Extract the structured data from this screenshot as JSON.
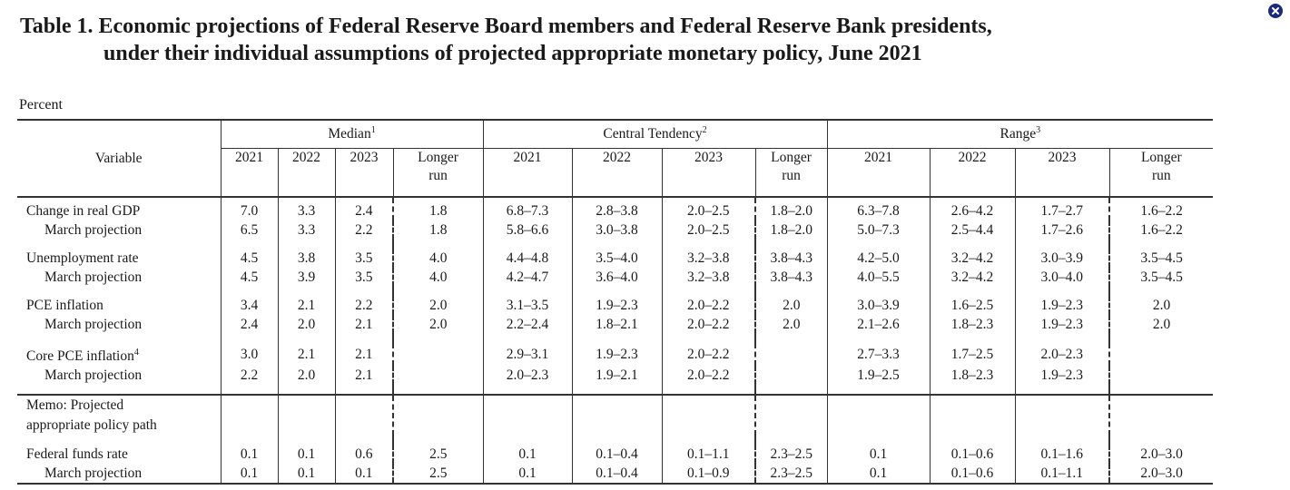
{
  "title": {
    "line1": "Table 1.  Economic projections of Federal Reserve Board members and Federal Reserve Bank presidents,",
    "line2": "under their individual assumptions of projected appropriate monetary policy, June 2021"
  },
  "units": "Percent",
  "headers": {
    "variable": "Variable",
    "median": "Median",
    "median_note": "1",
    "central": "Central Tendency",
    "central_note": "2",
    "range": "Range",
    "range_note": "3",
    "years": [
      "2021",
      "2022",
      "2023"
    ],
    "longer_run_1": "Longer",
    "longer_run_2": "run"
  },
  "rows": {
    "gdp": {
      "label": "Change in real GDP",
      "values": [
        "7.0",
        "3.3",
        "2.4",
        "1.8",
        "6.8–7.3",
        "2.8–3.8",
        "2.0–2.5",
        "1.8–2.0",
        "6.3–7.8",
        "2.6–4.2",
        "1.7–2.7",
        "1.6–2.2"
      ]
    },
    "gdp_march": {
      "label": "March projection",
      "values": [
        "6.5",
        "3.3",
        "2.2",
        "1.8",
        "5.8–6.6",
        "3.0–3.8",
        "2.0–2.5",
        "1.8–2.0",
        "5.0–7.3",
        "2.5–4.4",
        "1.7–2.6",
        "1.6–2.2"
      ]
    },
    "unemp": {
      "label": "Unemployment rate",
      "values": [
        "4.5",
        "3.8",
        "3.5",
        "4.0",
        "4.4–4.8",
        "3.5–4.0",
        "3.2–3.8",
        "3.8–4.3",
        "4.2–5.0",
        "3.2–4.2",
        "3.0–3.9",
        "3.5–4.5"
      ]
    },
    "unemp_march": {
      "label": "March projection",
      "values": [
        "4.5",
        "3.9",
        "3.5",
        "4.0",
        "4.2–4.7",
        "3.6–4.0",
        "3.2–3.8",
        "3.8–4.3",
        "4.0–5.5",
        "3.2–4.2",
        "3.0–4.0",
        "3.5–4.5"
      ]
    },
    "pce": {
      "label": "PCE inflation",
      "values": [
        "3.4",
        "2.1",
        "2.2",
        "2.0",
        "3.1–3.5",
        "1.9–2.3",
        "2.0–2.2",
        "2.0",
        "3.0–3.9",
        "1.6–2.5",
        "1.9–2.3",
        "2.0"
      ]
    },
    "pce_march": {
      "label": "March projection",
      "values": [
        "2.4",
        "2.0",
        "2.1",
        "2.0",
        "2.2–2.4",
        "1.8–2.1",
        "2.0–2.2",
        "2.0",
        "2.1–2.6",
        "1.8–2.3",
        "1.9–2.3",
        "2.0"
      ]
    },
    "core": {
      "label": "Core PCE inflation",
      "note": "4",
      "values": [
        "3.0",
        "2.1",
        "2.1",
        "",
        "2.9–3.1",
        "1.9–2.3",
        "2.0–2.2",
        "",
        "2.7–3.3",
        "1.7–2.5",
        "2.0–2.3",
        ""
      ]
    },
    "core_march": {
      "label": "March projection",
      "values": [
        "2.2",
        "2.0",
        "2.1",
        "",
        "2.0–2.3",
        "1.9–2.1",
        "2.0–2.2",
        "",
        "1.9–2.5",
        "1.8–2.3",
        "1.9–2.3",
        ""
      ]
    },
    "memo": {
      "line1": "Memo: Projected",
      "line2": "appropriate policy path"
    },
    "ffr": {
      "label": "Federal funds rate",
      "values": [
        "0.1",
        "0.1",
        "0.6",
        "2.5",
        "0.1",
        "0.1–0.4",
        "0.1–1.1",
        "2.3–2.5",
        "0.1",
        "0.1–0.6",
        "0.1–1.6",
        "2.0–3.0"
      ]
    },
    "ffr_march": {
      "label": "March projection",
      "values": [
        "0.1",
        "0.1",
        "0.1",
        "2.5",
        "0.1",
        "0.1–0.4",
        "0.1–0.9",
        "2.3–2.5",
        "0.1",
        "0.1–0.6",
        "0.1–1.1",
        "2.0–3.0"
      ]
    }
  },
  "icons": {
    "close": "close-icon"
  },
  "colors": {
    "close_icon": "#1b2a7a"
  }
}
